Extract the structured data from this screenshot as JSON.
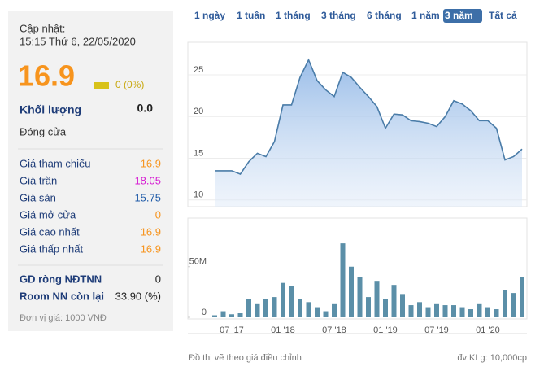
{
  "panel": {
    "update_label": "Cập nhật:",
    "update_time": "15:15 Thứ 6, 22/05/2020",
    "price": "16.9",
    "change": "0 (0%)",
    "volume_label": "Khối lượng",
    "volume_value": "0.0",
    "status": "Đóng cửa",
    "rows": [
      {
        "label": "Giá tham chiếu",
        "value": "16.9",
        "color": "#f7941d"
      },
      {
        "label": "Giá trần",
        "value": "18.05",
        "color": "#d61bd2"
      },
      {
        "label": "Giá sàn",
        "value": "15.75",
        "color": "#1e5aa8"
      },
      {
        "label": "Giá mở cửa",
        "value": "0",
        "color": "#f7941d"
      },
      {
        "label": "Giá cao nhất",
        "value": "16.9",
        "color": "#f7941d"
      },
      {
        "label": "Giá thấp nhất",
        "value": "16.9",
        "color": "#f7941d"
      }
    ],
    "rows2": [
      {
        "label": "GD ròng NĐTNN",
        "value": "0"
      },
      {
        "label": "Room NN còn lại",
        "value": "33.90 (%)"
      }
    ],
    "note": "Đơn vị giá: 1000 VNĐ"
  },
  "range_buttons": {
    "items": [
      "1 ngày",
      "1 tuần",
      "1 tháng",
      "3 tháng",
      "6 tháng",
      "1 năm",
      "3 năm",
      "Tất cả"
    ],
    "active": 6
  },
  "footer": {
    "left": "Đồ thị vẽ theo giá điều chỉnh",
    "right": "đv KLg: 10,000cp"
  },
  "chart_data": [
    {
      "type": "area",
      "color": "#4a7ca8",
      "ylim": [
        9.2,
        28.9
      ],
      "yticks": [
        10,
        15,
        20,
        25
      ],
      "grid": true,
      "values": [
        13.5,
        13.5,
        13.5,
        13.1,
        14.6,
        15.6,
        15.2,
        17.0,
        21.4,
        21.4,
        24.7,
        26.8,
        24.3,
        23.2,
        22.4,
        25.3,
        24.7,
        23.5,
        22.4,
        21.2,
        18.6,
        20.3,
        20.2,
        19.5,
        19.4,
        19.2,
        18.8,
        20.0,
        21.9,
        21.5,
        20.7,
        19.5,
        19.5,
        18.6,
        14.8,
        15.2,
        16.1
      ]
    },
    {
      "type": "bar",
      "color": "#5b8fa8",
      "ylim": [
        0,
        98
      ],
      "yticks": [
        0,
        {
          "value": 50,
          "label": "50M"
        }
      ],
      "categories": [
        null,
        null,
        "07 '17",
        null,
        null,
        null,
        null,
        null,
        "01 '18",
        null,
        null,
        null,
        null,
        null,
        "07 '18",
        null,
        null,
        null,
        null,
        null,
        "01 '19",
        null,
        null,
        null,
        null,
        null,
        "07 '19",
        null,
        null,
        null,
        null,
        null,
        "01 '20",
        null,
        null,
        null,
        null
      ],
      "values": [
        2,
        6,
        3,
        4,
        18,
        13,
        18,
        20,
        34,
        31,
        18,
        15,
        10,
        6,
        13,
        73,
        50,
        40,
        20,
        36,
        18,
        32,
        23,
        12,
        15,
        10,
        13,
        12,
        12,
        10,
        8,
        13,
        10,
        8,
        27,
        24,
        40
      ]
    }
  ]
}
